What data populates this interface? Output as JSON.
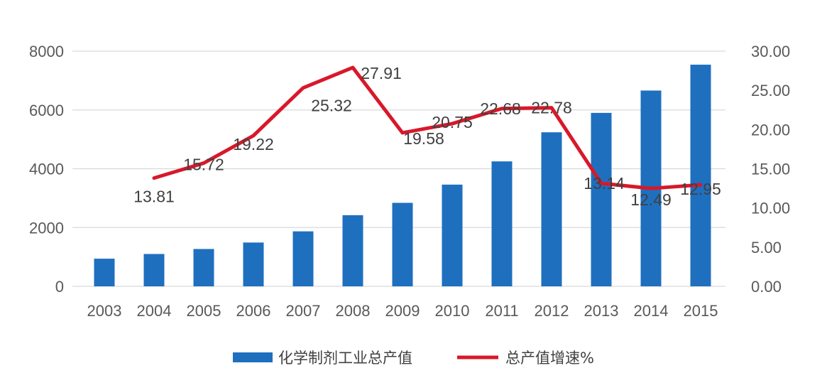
{
  "chart_data": {
    "type": "bar+line",
    "categories": [
      "2003",
      "2004",
      "2005",
      "2006",
      "2007",
      "2008",
      "2009",
      "2010",
      "2011",
      "2012",
      "2013",
      "2014",
      "2015"
    ],
    "series": [
      {
        "name": "化学制剂工业总产值",
        "type": "bar",
        "axis": "left",
        "color": "#1f6fbf",
        "values": [
          940,
          1100,
          1270,
          1490,
          1870,
          2420,
          2840,
          3460,
          4250,
          5240,
          5900,
          6660,
          7540
        ]
      },
      {
        "name": "总产值增速%",
        "type": "line",
        "axis": "right",
        "color": "#d8182a",
        "values": [
          null,
          13.81,
          15.72,
          19.22,
          25.32,
          27.91,
          19.58,
          20.75,
          22.68,
          22.78,
          13.14,
          12.49,
          12.95
        ],
        "labels": [
          null,
          "13.81",
          "15.72",
          "19.22",
          "25.32",
          "27.91",
          "19.58",
          "20.75",
          "22.68",
          "22.78",
          "13.14",
          "12.49",
          "12.95"
        ]
      }
    ],
    "y_left": {
      "ylim": [
        0,
        8000
      ],
      "ticks": [
        "0",
        "2000",
        "4000",
        "6000",
        "8000"
      ]
    },
    "y_right": {
      "ylim": [
        0,
        30
      ],
      "ticks": [
        "0.00",
        "5.00",
        "10.00",
        "15.00",
        "20.00",
        "25.00",
        "30.00"
      ]
    },
    "grid": true,
    "legend": "bottom-center"
  }
}
